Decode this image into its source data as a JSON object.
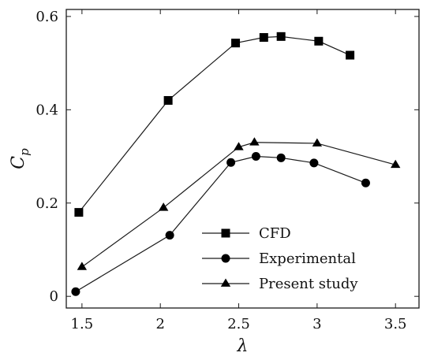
{
  "chart_data": {
    "type": "line",
    "xlabel": "λ",
    "ylabel": "C",
    "ylabel_subscript": "p",
    "xlim": [
      1.4,
      3.65
    ],
    "ylim": [
      -0.025,
      0.615
    ],
    "xticks": [
      1.5,
      2,
      2.5,
      3,
      3.5
    ],
    "xtick_labels": [
      "1.5",
      "2",
      "2.5",
      "3",
      "3.5"
    ],
    "yticks": [
      0,
      0.2,
      0.4,
      0.6
    ],
    "ytick_labels": [
      "0",
      "0.2",
      "0.4",
      "0.6"
    ],
    "grid": false,
    "legend_position": "bottom-center",
    "series": [
      {
        "name": "CFD",
        "marker": "square",
        "x": [
          1.48,
          2.05,
          2.48,
          2.66,
          2.77,
          3.01,
          3.21
        ],
        "y": [
          0.18,
          0.42,
          0.543,
          0.555,
          0.557,
          0.547,
          0.517
        ]
      },
      {
        "name": "Experimental",
        "marker": "circle",
        "x": [
          1.46,
          2.06,
          2.45,
          2.61,
          2.77,
          2.98,
          3.31
        ],
        "y": [
          0.01,
          0.131,
          0.287,
          0.3,
          0.297,
          0.286,
          0.243
        ]
      },
      {
        "name": "Present study",
        "marker": "triangle",
        "x": [
          1.5,
          2.02,
          2.5,
          2.6,
          3.0,
          3.5
        ],
        "y": [
          0.063,
          0.19,
          0.32,
          0.33,
          0.328,
          0.282
        ]
      }
    ],
    "colors": {
      "line": "#1a1a1a",
      "marker": "#000000",
      "axis": "#1a1a1a"
    }
  }
}
